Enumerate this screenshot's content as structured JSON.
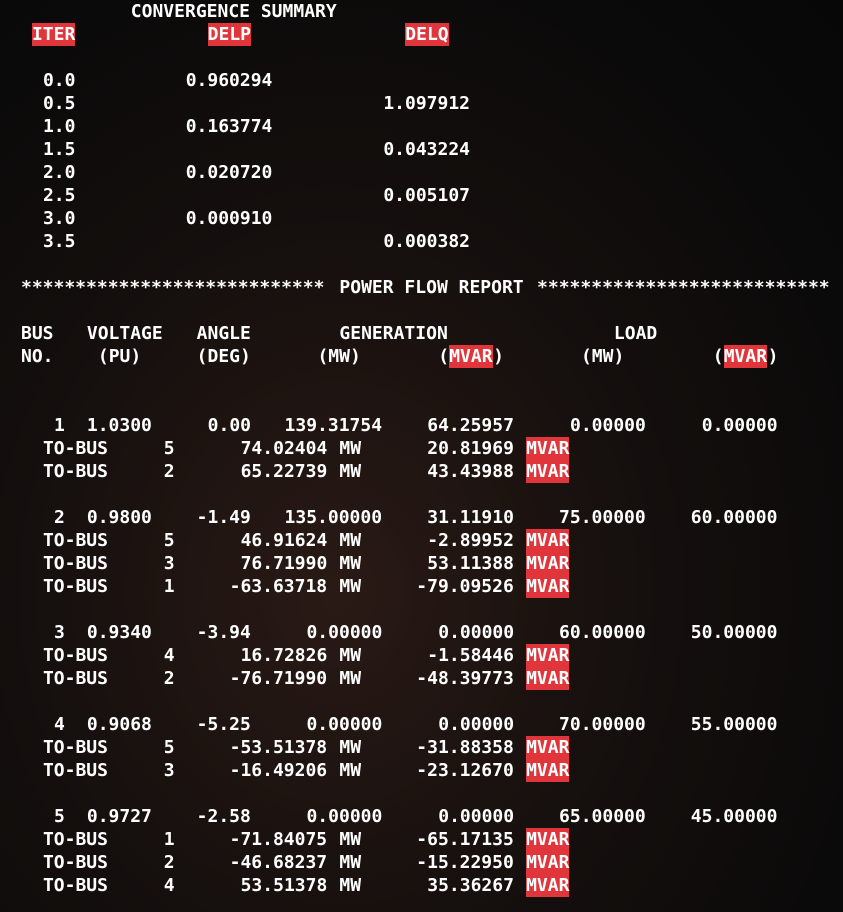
{
  "convergence": {
    "title": "CONVERGENCE SUMMARY",
    "headers": {
      "iter": "ITER",
      "delp": "DELP",
      "delq": "DELQ"
    },
    "rows": [
      {
        "iter": "0.0",
        "delp": "0.960294",
        "delq": ""
      },
      {
        "iter": "0.5",
        "delp": "",
        "delq": "1.097912"
      },
      {
        "iter": "1.0",
        "delp": "0.163774",
        "delq": ""
      },
      {
        "iter": "1.5",
        "delp": "",
        "delq": "0.043224"
      },
      {
        "iter": "2.0",
        "delp": "0.020720",
        "delq": ""
      },
      {
        "iter": "2.5",
        "delp": "",
        "delq": "0.005107"
      },
      {
        "iter": "3.0",
        "delp": "0.000910",
        "delq": ""
      },
      {
        "iter": "3.5",
        "delp": "",
        "delq": "0.000382"
      }
    ]
  },
  "report": {
    "banner_left": "****************************",
    "banner_title": "POWER FLOW REPORT",
    "banner_right": "***************************",
    "header1": {
      "bus": "BUS",
      "voltage": "VOLTAGE",
      "angle": "ANGLE",
      "generation": "GENERATION",
      "load": "LOAD"
    },
    "header2": {
      "no": "NO.",
      "pu": "(PU)",
      "deg": "(DEG)",
      "gen_mw": "(MW)",
      "gen_mvar_open": "(",
      "gen_mvar": "MVAR",
      "gen_mvar_close": ")",
      "load_mw": "(MW)",
      "load_mvar_open": "(",
      "load_mvar": "MVAR",
      "load_mvar_close": ")"
    },
    "to_bus_label": "TO-BUS",
    "mw_unit": "MW",
    "mvar_unit": "MVAR",
    "buses": [
      {
        "no": "1",
        "voltage": "1.0300",
        "angle": "0.00",
        "gen_mw": "139.31754",
        "gen_mvar": "64.25957",
        "load_mw": "0.00000",
        "load_mvar": "0.00000",
        "flows": [
          {
            "to": "5",
            "mw": "74.02404",
            "mvar": "20.81969"
          },
          {
            "to": "2",
            "mw": "65.22739",
            "mvar": "43.43988"
          }
        ]
      },
      {
        "no": "2",
        "voltage": "0.9800",
        "angle": "-1.49",
        "gen_mw": "135.00000",
        "gen_mvar": "31.11910",
        "load_mw": "75.00000",
        "load_mvar": "60.00000",
        "flows": [
          {
            "to": "5",
            "mw": "46.91624",
            "mvar": "-2.89952"
          },
          {
            "to": "3",
            "mw": "76.71990",
            "mvar": "53.11388"
          },
          {
            "to": "1",
            "mw": "-63.63718",
            "mvar": "-79.09526"
          }
        ]
      },
      {
        "no": "3",
        "voltage": "0.9340",
        "angle": "-3.94",
        "gen_mw": "0.00000",
        "gen_mvar": "0.00000",
        "load_mw": "60.00000",
        "load_mvar": "50.00000",
        "flows": [
          {
            "to": "4",
            "mw": "16.72826",
            "mvar": "-1.58446"
          },
          {
            "to": "2",
            "mw": "-76.71990",
            "mvar": "-48.39773"
          }
        ]
      },
      {
        "no": "4",
        "voltage": "0.9068",
        "angle": "-5.25",
        "gen_mw": "0.00000",
        "gen_mvar": "0.00000",
        "load_mw": "70.00000",
        "load_mvar": "55.00000",
        "flows": [
          {
            "to": "5",
            "mw": "-53.51378",
            "mvar": "-31.88358"
          },
          {
            "to": "3",
            "mw": "-16.49206",
            "mvar": "-23.12670"
          }
        ]
      },
      {
        "no": "5",
        "voltage": "0.9727",
        "angle": "-2.58",
        "gen_mw": "0.00000",
        "gen_mvar": "0.00000",
        "load_mw": "65.00000",
        "load_mvar": "45.00000",
        "flows": [
          {
            "to": "1",
            "mw": "-71.84075",
            "mvar": "-65.17135"
          },
          {
            "to": "2",
            "mw": "-46.68237",
            "mvar": "-15.22950"
          },
          {
            "to": "4",
            "mw": "53.51378",
            "mvar": "35.36267"
          }
        ]
      }
    ]
  }
}
